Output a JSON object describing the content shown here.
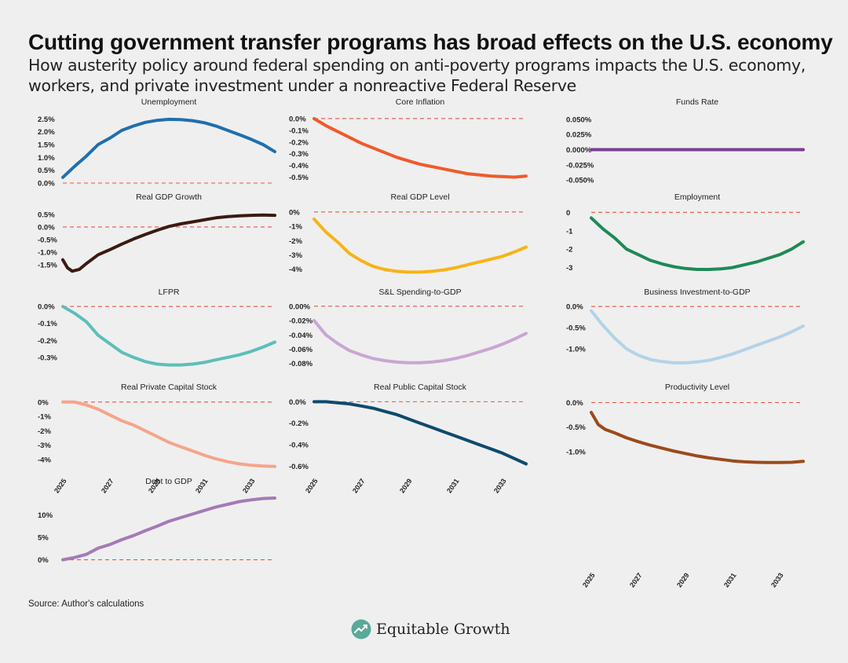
{
  "title": "Cutting government transfer programs has broad effects on the U.S. economy",
  "subtitle": "How austerity policy around federal spending on anti-poverty programs impacts the U.S. economy, workers, and private investment under a nonreactive Federal Reserve",
  "source": "Source: Author's calculations",
  "brand": {
    "name": "Equitable Growth",
    "logo_icon": "growth-chart-logo-icon"
  },
  "colors": {
    "zero_line": "#e5563f",
    "background": "#efefef"
  },
  "x_ticks": [
    "2025",
    "2027",
    "2029",
    "2031",
    "2033"
  ],
  "chart_data": [
    {
      "type": "line",
      "title": "Unemployment",
      "color": "#1f6fae",
      "ylim": [
        0,
        2.6
      ],
      "yticks": [
        0,
        0.5,
        1,
        1.5,
        2,
        2.5
      ],
      "ytick_labels": [
        "0.0%",
        "0.5%",
        "1.0%",
        "1.5%",
        "2.0%",
        "2.5%"
      ],
      "x": [
        2025,
        2025.5,
        2026,
        2026.5,
        2027,
        2027.5,
        2028,
        2028.5,
        2029,
        2029.5,
        2030,
        2030.5,
        2031,
        2031.5,
        2032,
        2032.5,
        2033,
        2033.5,
        2034
      ],
      "values": [
        0.22,
        0.65,
        1.05,
        1.5,
        1.75,
        2.05,
        2.22,
        2.36,
        2.44,
        2.48,
        2.47,
        2.43,
        2.35,
        2.22,
        2.05,
        1.88,
        1.7,
        1.5,
        1.22
      ]
    },
    {
      "type": "line",
      "title": "Core Inflation",
      "color": "#f05a2a",
      "ylim": [
        -0.55,
        0.02
      ],
      "yticks": [
        0,
        -0.1,
        -0.2,
        -0.3,
        -0.4,
        -0.5
      ],
      "ytick_labels": [
        "0.0%",
        "-0.1%",
        "-0.2%",
        "-0.3%",
        "-0.4%",
        "-0.5%"
      ],
      "x": [
        2025,
        2025.5,
        2026,
        2026.5,
        2027,
        2027.5,
        2028,
        2028.5,
        2029,
        2029.5,
        2030,
        2030.5,
        2031,
        2031.5,
        2032,
        2032.5,
        2033,
        2033.5,
        2034
      ],
      "values": [
        0,
        -0.06,
        -0.11,
        -0.16,
        -0.21,
        -0.25,
        -0.29,
        -0.33,
        -0.36,
        -0.39,
        -0.41,
        -0.43,
        -0.45,
        -0.47,
        -0.48,
        -0.49,
        -0.495,
        -0.5,
        -0.49
      ]
    },
    {
      "type": "line",
      "title": "Funds Rate",
      "color": "#7b3c96",
      "ylim": [
        -0.055,
        0.055
      ],
      "yticks": [
        0.05,
        0.025,
        0,
        -0.025,
        -0.05
      ],
      "ytick_labels": [
        "0.050%",
        "0.025%",
        "0.000%",
        "-0.025%",
        "-0.050%"
      ],
      "x": [
        2025,
        2034
      ],
      "values": [
        0,
        0
      ]
    },
    {
      "type": "line",
      "title": "Real GDP Growth",
      "color": "#3b1a12",
      "ylim": [
        -1.9,
        0.65
      ],
      "yticks": [
        0.5,
        0,
        -0.5,
        -1,
        -1.5
      ],
      "ytick_labels": [
        "0.5%",
        "0.0%",
        "-0.5%",
        "-1.0%",
        "-1.5%"
      ],
      "x": [
        2025,
        2025.2,
        2025.4,
        2025.7,
        2026,
        2026.5,
        2027,
        2027.5,
        2028,
        2028.5,
        2029,
        2029.5,
        2030,
        2030.5,
        2031,
        2031.5,
        2032,
        2032.5,
        2033,
        2033.5,
        2034
      ],
      "values": [
        -1.3,
        -1.62,
        -1.75,
        -1.68,
        -1.45,
        -1.1,
        -0.9,
        -0.68,
        -0.48,
        -0.3,
        -0.13,
        0.02,
        0.12,
        0.2,
        0.28,
        0.36,
        0.41,
        0.44,
        0.46,
        0.47,
        0.46
      ]
    },
    {
      "type": "line",
      "title": "Real GDP Level",
      "color": "#f7b317",
      "ylim": [
        -4.4,
        0.1
      ],
      "yticks": [
        0,
        -1,
        -2,
        -3,
        -4
      ],
      "ytick_labels": [
        "0%",
        "-1%",
        "-2%",
        "-3%",
        "-4%"
      ],
      "x": [
        2025,
        2025.5,
        2026,
        2026.5,
        2027,
        2027.5,
        2028,
        2028.5,
        2029,
        2029.5,
        2030,
        2030.5,
        2031,
        2031.5,
        2032,
        2032.5,
        2033,
        2033.5,
        2034
      ],
      "values": [
        -0.5,
        -1.4,
        -2.1,
        -2.9,
        -3.4,
        -3.8,
        -4.02,
        -4.15,
        -4.2,
        -4.2,
        -4.15,
        -4.05,
        -3.9,
        -3.7,
        -3.5,
        -3.3,
        -3.1,
        -2.8,
        -2.45
      ]
    },
    {
      "type": "line",
      "title": "Employment",
      "color": "#1d8a57",
      "ylim": [
        -3.4,
        0.1
      ],
      "yticks": [
        0,
        -1,
        -2,
        -3
      ],
      "ytick_labels": [
        "0",
        "-1",
        "-2",
        "-3"
      ],
      "x": [
        2025,
        2025.5,
        2026,
        2026.5,
        2027,
        2027.5,
        2028,
        2028.5,
        2029,
        2029.5,
        2030,
        2030.5,
        2031,
        2031.5,
        2032,
        2032.5,
        2033,
        2033.5,
        2034
      ],
      "values": [
        -0.3,
        -0.9,
        -1.4,
        -2,
        -2.3,
        -2.6,
        -2.8,
        -2.95,
        -3.05,
        -3.1,
        -3.1,
        -3.07,
        -3.0,
        -2.85,
        -2.7,
        -2.5,
        -2.3,
        -2,
        -1.6
      ]
    },
    {
      "type": "line",
      "title": "LFPR",
      "color": "#5cbfb8",
      "ylim": [
        -0.37,
        0.01
      ],
      "yticks": [
        0,
        -0.1,
        -0.2,
        -0.3
      ],
      "ytick_labels": [
        "0.0%",
        "-0.1%",
        "-0.2%",
        "-0.3%"
      ],
      "x": [
        2025,
        2025.5,
        2026,
        2026.5,
        2027,
        2027.5,
        2028,
        2028.5,
        2029,
        2029.5,
        2030,
        2030.5,
        2031,
        2031.5,
        2032,
        2032.5,
        2033,
        2033.5,
        2034
      ],
      "values": [
        0,
        -0.04,
        -0.09,
        -0.17,
        -0.22,
        -0.27,
        -0.3,
        -0.325,
        -0.34,
        -0.345,
        -0.345,
        -0.34,
        -0.33,
        -0.315,
        -0.3,
        -0.285,
        -0.265,
        -0.24,
        -0.21
      ]
    },
    {
      "type": "line",
      "title": "S&L Spending-to-GDP",
      "color": "#c9a6d4",
      "ylim": [
        -0.088,
        0.002
      ],
      "yticks": [
        0,
        -0.02,
        -0.04,
        -0.06,
        -0.08
      ],
      "ytick_labels": [
        "0.00%",
        "-0.02%",
        "-0.04%",
        "-0.06%",
        "-0.08%"
      ],
      "x": [
        2025,
        2025.5,
        2026,
        2026.5,
        2027,
        2027.5,
        2028,
        2028.5,
        2029,
        2029.5,
        2030,
        2030.5,
        2031,
        2031.5,
        2032,
        2032.5,
        2033,
        2033.5,
        2034
      ],
      "values": [
        -0.02,
        -0.04,
        -0.052,
        -0.062,
        -0.068,
        -0.073,
        -0.076,
        -0.078,
        -0.079,
        -0.079,
        -0.078,
        -0.076,
        -0.073,
        -0.069,
        -0.064,
        -0.059,
        -0.053,
        -0.046,
        -0.038
      ]
    },
    {
      "type": "line",
      "title": "Business Investment-to-GDP",
      "color": "#b3d3e8",
      "ylim": [
        -1.48,
        0.04
      ],
      "yticks": [
        0,
        -0.5,
        -1
      ],
      "ytick_labels": [
        "0.0%",
        "-0.5%",
        "-1.0%"
      ],
      "x": [
        2025,
        2025.5,
        2026,
        2026.5,
        2027,
        2027.5,
        2028,
        2028.5,
        2029,
        2029.5,
        2030,
        2030.5,
        2031,
        2031.5,
        2032,
        2032.5,
        2033,
        2033.5,
        2034
      ],
      "values": [
        -0.1,
        -0.45,
        -0.75,
        -1.0,
        -1.15,
        -1.25,
        -1.3,
        -1.33,
        -1.33,
        -1.31,
        -1.27,
        -1.2,
        -1.12,
        -1.02,
        -0.92,
        -0.82,
        -0.72,
        -0.6,
        -0.46
      ]
    },
    {
      "type": "line",
      "title": "Real Private Capital Stock",
      "color": "#f5a58a",
      "ylim": [
        -4.6,
        0.1
      ],
      "yticks": [
        0,
        -1,
        -2,
        -3,
        -4
      ],
      "ytick_labels": [
        "0%",
        "-1%",
        "-2%",
        "-3%",
        "-4%"
      ],
      "x": [
        2025,
        2025.5,
        2026,
        2026.5,
        2027,
        2027.5,
        2028,
        2028.5,
        2029,
        2029.5,
        2030,
        2030.5,
        2031,
        2031.5,
        2032,
        2032.5,
        2033,
        2033.5,
        2034
      ],
      "values": [
        0,
        0,
        -0.2,
        -0.5,
        -0.9,
        -1.3,
        -1.6,
        -2,
        -2.4,
        -2.8,
        -3.1,
        -3.4,
        -3.7,
        -3.95,
        -4.15,
        -4.3,
        -4.4,
        -4.45,
        -4.48
      ]
    },
    {
      "type": "line",
      "title": "Real Public Capital Stock",
      "color": "#0e4a6e",
      "ylim": [
        -0.62,
        0.01
      ],
      "yticks": [
        0,
        -0.2,
        -0.4,
        -0.6
      ],
      "ytick_labels": [
        "0.0%",
        "-0.2%",
        "-0.4%",
        "-0.6%"
      ],
      "x": [
        2025,
        2025.5,
        2026,
        2026.5,
        2027,
        2027.5,
        2028,
        2028.5,
        2029,
        2029.5,
        2030,
        2030.5,
        2031,
        2031.5,
        2032,
        2032.5,
        2033,
        2033.5,
        2034
      ],
      "values": [
        0,
        0,
        -0.01,
        -0.02,
        -0.04,
        -0.06,
        -0.09,
        -0.12,
        -0.16,
        -0.2,
        -0.24,
        -0.28,
        -0.32,
        -0.36,
        -0.4,
        -0.44,
        -0.48,
        -0.53,
        -0.58
      ]
    },
    {
      "type": "line",
      "title": "Productivity Level",
      "color": "#9b4a1c",
      "ylim": [
        -1.34,
        0.04
      ],
      "yticks": [
        0,
        -0.5,
        -1
      ],
      "ytick_labels": [
        "0.0%",
        "-0.5%",
        "-1.0%"
      ],
      "x": [
        2025,
        2025.3,
        2025.6,
        2026,
        2026.5,
        2027,
        2027.5,
        2028,
        2028.5,
        2029,
        2029.5,
        2030,
        2030.5,
        2031,
        2031.5,
        2032,
        2032.5,
        2033,
        2033.5,
        2034
      ],
      "values": [
        -0.2,
        -0.45,
        -0.55,
        -0.62,
        -0.72,
        -0.8,
        -0.87,
        -0.93,
        -0.99,
        -1.04,
        -1.09,
        -1.13,
        -1.16,
        -1.19,
        -1.21,
        -1.22,
        -1.225,
        -1.225,
        -1.22,
        -1.2
      ]
    },
    {
      "type": "line",
      "title": "Debt to GDP",
      "color": "#a57ab5",
      "ylim": [
        -0.6,
        14.5
      ],
      "yticks": [
        0,
        5,
        10
      ],
      "ytick_labels": [
        "0%",
        "5%",
        "10%"
      ],
      "x": [
        2025,
        2025.5,
        2026,
        2026.5,
        2027,
        2027.5,
        2028,
        2028.5,
        2029,
        2029.5,
        2030,
        2030.5,
        2031,
        2031.5,
        2032,
        2032.5,
        2033,
        2033.5,
        2034
      ],
      "values": [
        0,
        0.5,
        1.2,
        2.6,
        3.4,
        4.5,
        5.4,
        6.5,
        7.5,
        8.6,
        9.4,
        10.2,
        11,
        11.8,
        12.4,
        13,
        13.4,
        13.7,
        13.8
      ]
    }
  ]
}
